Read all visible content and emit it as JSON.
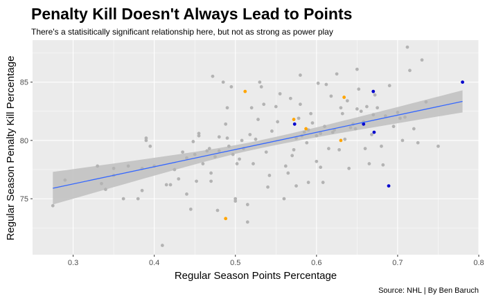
{
  "chart_data": {
    "type": "scatter",
    "title": "Penalty Kill Doesn't Always Lead to Points",
    "subtitle": "There's a statisitically significant relationship here, but not as strong as power play",
    "xlabel": "Regular Season Points Percentage",
    "ylabel": "Regular Season Penalty Kill Percentage",
    "caption": "Source: NHL | By Ben Baruch",
    "xlim": [
      0.25,
      0.8
    ],
    "ylim": [
      70.2,
      88.6
    ],
    "x_ticks": [
      0.3,
      0.4,
      0.5,
      0.6,
      0.7,
      0.8
    ],
    "x_tick_labels": [
      "0.3",
      "0.4",
      "0.5",
      "0.6",
      "0.7",
      "0.8"
    ],
    "y_ticks": [
      75,
      80,
      85
    ],
    "y_tick_labels": [
      "75",
      "80",
      "85"
    ],
    "grid": true,
    "colors": {
      "panel": "#ebebeb",
      "grid": "#ffffff",
      "gray_points": "#b3b3b3",
      "orange_points": "#ffa500",
      "blue_points": "#0000cd",
      "trend_line": "#3366ff",
      "ribbon": "#c2c2c2"
    },
    "trend": {
      "x": [
        0.275,
        0.78
      ],
      "y": [
        75.9,
        83.35
      ],
      "band_low": [
        74.5,
        82.4
      ],
      "band_high": [
        77.3,
        84.3
      ]
    },
    "series": [
      {
        "color": "gray",
        "points": [
          [
            0.275,
            74.4
          ],
          [
            0.29,
            76.6
          ],
          [
            0.33,
            77.8
          ],
          [
            0.335,
            76.3
          ],
          [
            0.34,
            75.8
          ],
          [
            0.35,
            77.0
          ],
          [
            0.35,
            77.6
          ],
          [
            0.362,
            75.0
          ],
          [
            0.368,
            77.8
          ],
          [
            0.38,
            75.0
          ],
          [
            0.385,
            75.7
          ],
          [
            0.385,
            77.6
          ],
          [
            0.39,
            80.0
          ],
          [
            0.39,
            80.2
          ],
          [
            0.395,
            79.5
          ],
          [
            0.4,
            77.8
          ],
          [
            0.41,
            71.0
          ],
          [
            0.415,
            76.2
          ],
          [
            0.42,
            76.2
          ],
          [
            0.425,
            77.5
          ],
          [
            0.43,
            76.7
          ],
          [
            0.435,
            79.0
          ],
          [
            0.44,
            78.5
          ],
          [
            0.44,
            75.4
          ],
          [
            0.445,
            74.1
          ],
          [
            0.448,
            79.9
          ],
          [
            0.45,
            78.8
          ],
          [
            0.452,
            76.5
          ],
          [
            0.455,
            80.4
          ],
          [
            0.455,
            80.6
          ],
          [
            0.46,
            78.0
          ],
          [
            0.465,
            79.1
          ],
          [
            0.468,
            79.3
          ],
          [
            0.47,
            76.5
          ],
          [
            0.47,
            77.2
          ],
          [
            0.472,
            85.5
          ],
          [
            0.475,
            78.6
          ],
          [
            0.478,
            74.0
          ],
          [
            0.48,
            79.1
          ],
          [
            0.48,
            80.3
          ],
          [
            0.485,
            85.0
          ],
          [
            0.488,
            81.4
          ],
          [
            0.49,
            80.2
          ],
          [
            0.49,
            82.8
          ],
          [
            0.492,
            79.5
          ],
          [
            0.495,
            84.6
          ],
          [
            0.497,
            78.8
          ],
          [
            0.5,
            74.8
          ],
          [
            0.5,
            75.0
          ],
          [
            0.502,
            78.0
          ],
          [
            0.505,
            78.4
          ],
          [
            0.508,
            80.0
          ],
          [
            0.51,
            79.3
          ],
          [
            0.515,
            73.0
          ],
          [
            0.515,
            74.5
          ],
          [
            0.518,
            80.5
          ],
          [
            0.52,
            82.8
          ],
          [
            0.522,
            78.0
          ],
          [
            0.525,
            80.1
          ],
          [
            0.528,
            81.8
          ],
          [
            0.53,
            85.0
          ],
          [
            0.532,
            84.6
          ],
          [
            0.535,
            83.1
          ],
          [
            0.538,
            79.0
          ],
          [
            0.54,
            76.0
          ],
          [
            0.542,
            77.0
          ],
          [
            0.545,
            80.8
          ],
          [
            0.55,
            82.9
          ],
          [
            0.552,
            81.6
          ],
          [
            0.555,
            84.0
          ],
          [
            0.56,
            75.0
          ],
          [
            0.562,
            77.8
          ],
          [
            0.565,
            77.2
          ],
          [
            0.568,
            83.6
          ],
          [
            0.57,
            78.7
          ],
          [
            0.572,
            79.2
          ],
          [
            0.575,
            76.1
          ],
          [
            0.575,
            80.2
          ],
          [
            0.578,
            81.9
          ],
          [
            0.58,
            83.1
          ],
          [
            0.58,
            85.6
          ],
          [
            0.582,
            80.4
          ],
          [
            0.585,
            80.7
          ],
          [
            0.588,
            79.8
          ],
          [
            0.59,
            76.4
          ],
          [
            0.59,
            80.9
          ],
          [
            0.593,
            82.3
          ],
          [
            0.595,
            81.5
          ],
          [
            0.6,
            78.2
          ],
          [
            0.6,
            80.4
          ],
          [
            0.602,
            84.9
          ],
          [
            0.605,
            77.7
          ],
          [
            0.605,
            80.6
          ],
          [
            0.608,
            76.4
          ],
          [
            0.61,
            81.2
          ],
          [
            0.612,
            84.8
          ],
          [
            0.615,
            79.3
          ],
          [
            0.618,
            83.8
          ],
          [
            0.62,
            80.7
          ],
          [
            0.622,
            80.9
          ],
          [
            0.625,
            85.7
          ],
          [
            0.628,
            79.2
          ],
          [
            0.63,
            82.8
          ],
          [
            0.632,
            82.3
          ],
          [
            0.635,
            80.1
          ],
          [
            0.638,
            83.4
          ],
          [
            0.64,
            77.6
          ],
          [
            0.642,
            81.1
          ],
          [
            0.645,
            81.4
          ],
          [
            0.648,
            81.0
          ],
          [
            0.65,
            82.7
          ],
          [
            0.65,
            86.1
          ],
          [
            0.652,
            84.4
          ],
          [
            0.655,
            82.5
          ],
          [
            0.658,
            81.6
          ],
          [
            0.66,
            79.3
          ],
          [
            0.662,
            82.9
          ],
          [
            0.665,
            78.0
          ],
          [
            0.668,
            80.5
          ],
          [
            0.67,
            82.2
          ],
          [
            0.672,
            83.9
          ],
          [
            0.675,
            82.8
          ],
          [
            0.68,
            79.5
          ],
          [
            0.682,
            77.9
          ],
          [
            0.685,
            82.1
          ],
          [
            0.69,
            84.7
          ],
          [
            0.695,
            81.2
          ],
          [
            0.7,
            82.4
          ],
          [
            0.703,
            81.9
          ],
          [
            0.706,
            80.0
          ],
          [
            0.709,
            82.0
          ],
          [
            0.712,
            88.0
          ],
          [
            0.715,
            86.0
          ],
          [
            0.72,
            81.0
          ],
          [
            0.725,
            79.8
          ],
          [
            0.73,
            86.9
          ],
          [
            0.735,
            83.3
          ],
          [
            0.75,
            79.5
          ]
        ]
      },
      {
        "color": "orange",
        "points": [
          [
            0.488,
            73.3
          ],
          [
            0.512,
            84.2
          ],
          [
            0.572,
            81.8
          ],
          [
            0.587,
            81.0
          ],
          [
            0.63,
            80.0
          ],
          [
            0.634,
            83.7
          ]
        ]
      },
      {
        "color": "blue",
        "points": [
          [
            0.573,
            81.4
          ],
          [
            0.658,
            81.4
          ],
          [
            0.67,
            84.2
          ],
          [
            0.671,
            80.7
          ],
          [
            0.689,
            76.1
          ],
          [
            0.78,
            85.0
          ]
        ]
      }
    ]
  }
}
